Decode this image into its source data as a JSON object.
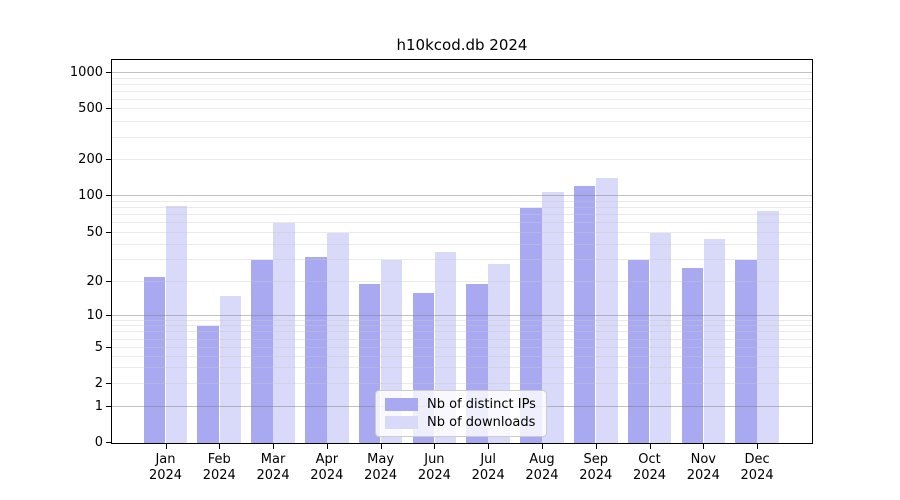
{
  "chart_data": {
    "type": "bar",
    "title": "h10kcod.db 2024",
    "year_label": "2024",
    "months": [
      "Jan",
      "Feb",
      "Mar",
      "Apr",
      "May",
      "Jun",
      "Jul",
      "Aug",
      "Sep",
      "Oct",
      "Nov",
      "Dec"
    ],
    "categories": [
      "Jan 2024",
      "Feb 2024",
      "Mar 2024",
      "Apr 2024",
      "May 2024",
      "Jun 2024",
      "Jul 2024",
      "Aug 2024",
      "Sep 2024",
      "Oct 2024",
      "Nov 2024",
      "Dec 2024"
    ],
    "series": [
      {
        "name": "Nb of distinct IPs",
        "color": "#a9a9f2",
        "values": [
          22,
          8,
          30,
          32,
          19,
          16,
          19,
          80,
          120,
          30,
          26,
          30
        ]
      },
      {
        "name": "Nb of downloads",
        "color": "#d9d9fa",
        "values": [
          83,
          15,
          60,
          50,
          30,
          35,
          28,
          107,
          140,
          50,
          45,
          75
        ]
      }
    ],
    "y_ticks": [
      0,
      1,
      2,
      5,
      10,
      20,
      50,
      100,
      200,
      500,
      1000
    ],
    "y_scale": "log-like (linear segment from 0 to 1)",
    "xlabel": "",
    "ylabel": "",
    "grid": true,
    "legend_position": "lower center"
  }
}
